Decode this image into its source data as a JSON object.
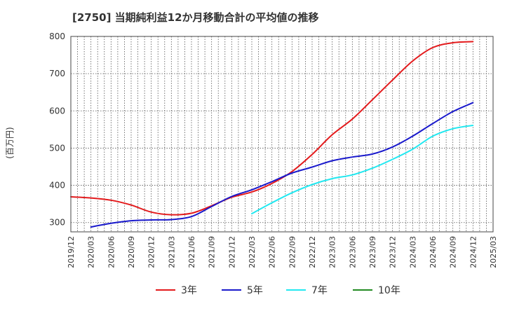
{
  "chart_data": {
    "type": "line",
    "title": "[2750]  当期純利益12か月移動合計の平均値の推移",
    "ylabel": "(百万円)",
    "xlabel": "",
    "ylim": [
      275,
      800
    ],
    "y_ticks": [
      300,
      400,
      500,
      600,
      700,
      800
    ],
    "x_tick_labels": [
      "2019/12",
      "2020/03",
      "2020/06",
      "2020/09",
      "2020/12",
      "2021/03",
      "2021/06",
      "2021/09",
      "2021/12",
      "2022/03",
      "2022/06",
      "2022/09",
      "2022/12",
      "2023/03",
      "2023/06",
      "2023/09",
      "2023/12",
      "2024/03",
      "2024/06",
      "2024/09",
      "2024/12",
      "2025/03"
    ],
    "grid": true,
    "legend_position": "bottom",
    "series": [
      {
        "name": "3年",
        "color": "#e31a1c",
        "points": [
          [
            "2019/12",
            369
          ],
          [
            "2020/03",
            366
          ],
          [
            "2020/06",
            360
          ],
          [
            "2020/09",
            347
          ],
          [
            "2020/12",
            328
          ],
          [
            "2021/03",
            321
          ],
          [
            "2021/06",
            325
          ],
          [
            "2021/09",
            345
          ],
          [
            "2021/12",
            368
          ],
          [
            "2022/03",
            382
          ],
          [
            "2022/06",
            405
          ],
          [
            "2022/09",
            437
          ],
          [
            "2022/12",
            483
          ],
          [
            "2023/03",
            536
          ],
          [
            "2023/06",
            578
          ],
          [
            "2023/09",
            630
          ],
          [
            "2023/12",
            683
          ],
          [
            "2024/03",
            734
          ],
          [
            "2024/06",
            770
          ],
          [
            "2024/09",
            783
          ],
          [
            "2024/12",
            786
          ]
        ]
      },
      {
        "name": "5年",
        "color": "#1a1acc",
        "points": [
          [
            "2020/03",
            288
          ],
          [
            "2020/06",
            298
          ],
          [
            "2020/09",
            305
          ],
          [
            "2020/12",
            307
          ],
          [
            "2021/03",
            308
          ],
          [
            "2021/06",
            316
          ],
          [
            "2021/09",
            343
          ],
          [
            "2021/12",
            370
          ],
          [
            "2022/03",
            388
          ],
          [
            "2022/06",
            410
          ],
          [
            "2022/09",
            433
          ],
          [
            "2022/12",
            449
          ],
          [
            "2023/03",
            466
          ],
          [
            "2023/06",
            476
          ],
          [
            "2023/09",
            484
          ],
          [
            "2023/12",
            503
          ],
          [
            "2024/03",
            532
          ],
          [
            "2024/06",
            566
          ],
          [
            "2024/09",
            598
          ],
          [
            "2024/12",
            622
          ]
        ]
      },
      {
        "name": "7年",
        "color": "#22e8f0",
        "points": [
          [
            "2022/03",
            324
          ],
          [
            "2022/06",
            353
          ],
          [
            "2022/09",
            380
          ],
          [
            "2022/12",
            402
          ],
          [
            "2023/03",
            418
          ],
          [
            "2023/06",
            428
          ],
          [
            "2023/09",
            446
          ],
          [
            "2023/12",
            470
          ],
          [
            "2024/03",
            497
          ],
          [
            "2024/06",
            532
          ],
          [
            "2024/09",
            552
          ],
          [
            "2024/12",
            561
          ]
        ]
      },
      {
        "name": "10年",
        "color": "#228b22",
        "points": []
      }
    ]
  }
}
